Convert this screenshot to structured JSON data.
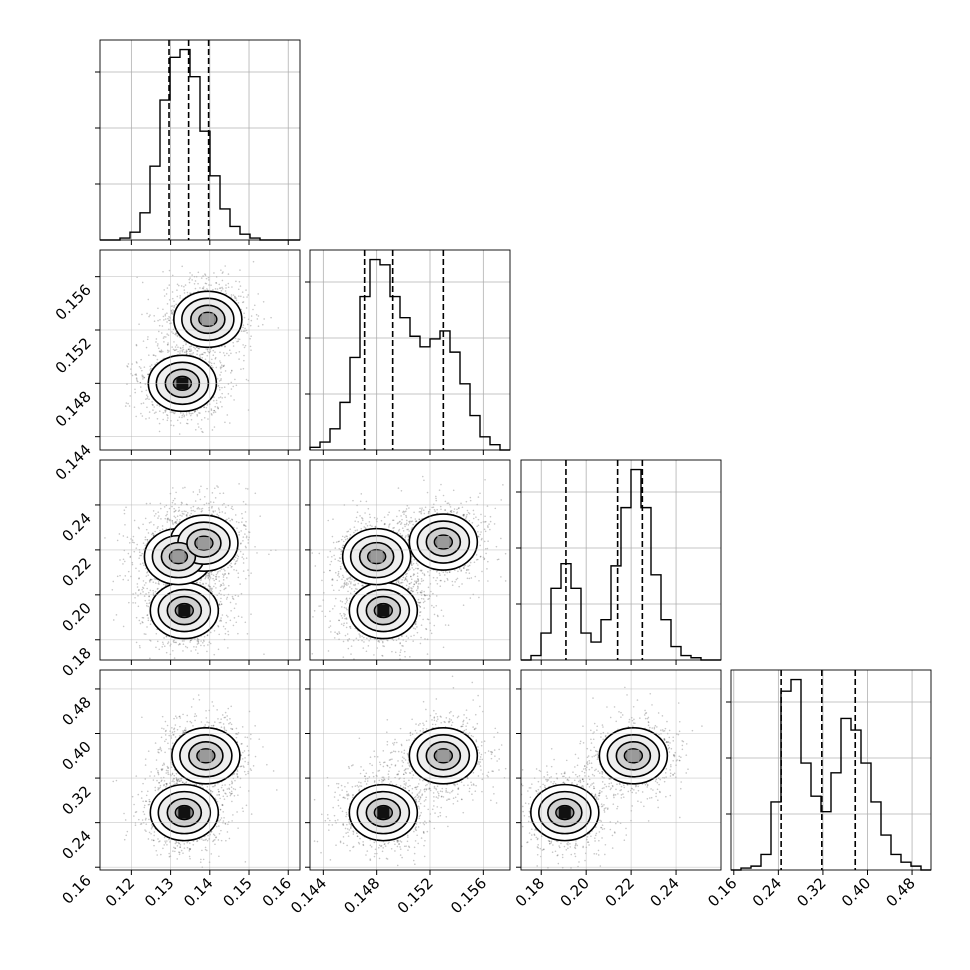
{
  "chart_data": {
    "type": "corner",
    "title": "",
    "grid": true,
    "parameters": [
      {
        "name": "",
        "range": [
          0.112,
          0.163
        ],
        "ticks": [
          0.12,
          0.13,
          0.14,
          0.15,
          0.16
        ],
        "tick_labels": [
          "0.12",
          "0.13",
          "0.14",
          "0.15",
          "0.16"
        ],
        "quantile_lines": [
          0.1296,
          0.1346,
          0.1397
        ]
      },
      {
        "name": "",
        "range": [
          0.143,
          0.158
        ],
        "ticks": [
          0.144,
          0.148,
          0.152,
          0.156
        ],
        "tick_labels": [
          "0.144",
          "0.148",
          "0.152",
          "0.156"
        ],
        "quantile_lines": [
          0.1471,
          0.1492,
          0.153
        ]
      },
      {
        "name": "",
        "range": [
          0.171,
          0.26
        ],
        "ticks": [
          0.18,
          0.2,
          0.22,
          0.24
        ],
        "tick_labels": [
          "0.18",
          "0.20",
          "0.22",
          "0.24"
        ],
        "quantile_lines": [
          0.191,
          0.214,
          0.225
        ]
      },
      {
        "name": "",
        "range": [
          0.155,
          0.514
        ],
        "ticks": [
          0.16,
          0.24,
          0.32,
          0.4,
          0.48
        ],
        "tick_labels": [
          "0.16",
          "0.24",
          "0.32",
          "0.40",
          "0.48"
        ],
        "quantile_lines": [
          0.245,
          0.318,
          0.378
        ]
      }
    ],
    "histograms": [
      {
        "param": 0,
        "bin_range": [
          0.112,
          0.163
        ],
        "counts": [
          0,
          0,
          1,
          4,
          14,
          38,
          72,
          94,
          98,
          84,
          56,
          33,
          16,
          7,
          3,
          1,
          0,
          0,
          0,
          0
        ]
      },
      {
        "param": 1,
        "bin_range": [
          0.143,
          0.158
        ],
        "counts": [
          1,
          3,
          8,
          18,
          35,
          58,
          72,
          70,
          58,
          50,
          43,
          39,
          42,
          45,
          37,
          25,
          13,
          5,
          2,
          0
        ]
      },
      {
        "param": 2,
        "bin_range": [
          0.171,
          0.26
        ],
        "counts": [
          0,
          2,
          12,
          32,
          43,
          32,
          12,
          8,
          18,
          42,
          68,
          85,
          68,
          38,
          18,
          6,
          2,
          1,
          0,
          0
        ]
      },
      {
        "param": 3,
        "bin_range": [
          0.155,
          0.514
        ],
        "counts": [
          0,
          1,
          2,
          8,
          35,
          92,
          98,
          55,
          38,
          30,
          50,
          78,
          72,
          55,
          35,
          18,
          8,
          4,
          2,
          0
        ]
      }
    ],
    "density_modes": {
      "p1_vs_p0": [
        [
          0.133,
          0.148
        ],
        [
          0.1395,
          0.1528
        ]
      ],
      "p2_vs_p0": [
        [
          0.1335,
          0.193
        ],
        [
          0.132,
          0.217
        ],
        [
          0.1385,
          0.223
        ]
      ],
      "p2_vs_p1": [
        [
          0.1485,
          0.193
        ],
        [
          0.148,
          0.217
        ],
        [
          0.153,
          0.2235
        ]
      ],
      "p3_vs_p0": [
        [
          0.1335,
          0.258
        ],
        [
          0.139,
          0.36
        ]
      ],
      "p3_vs_p1": [
        [
          0.1485,
          0.258
        ],
        [
          0.153,
          0.36
        ]
      ],
      "p3_vs_p2": [
        [
          0.1905,
          0.258
        ],
        [
          0.221,
          0.36
        ]
      ]
    }
  }
}
